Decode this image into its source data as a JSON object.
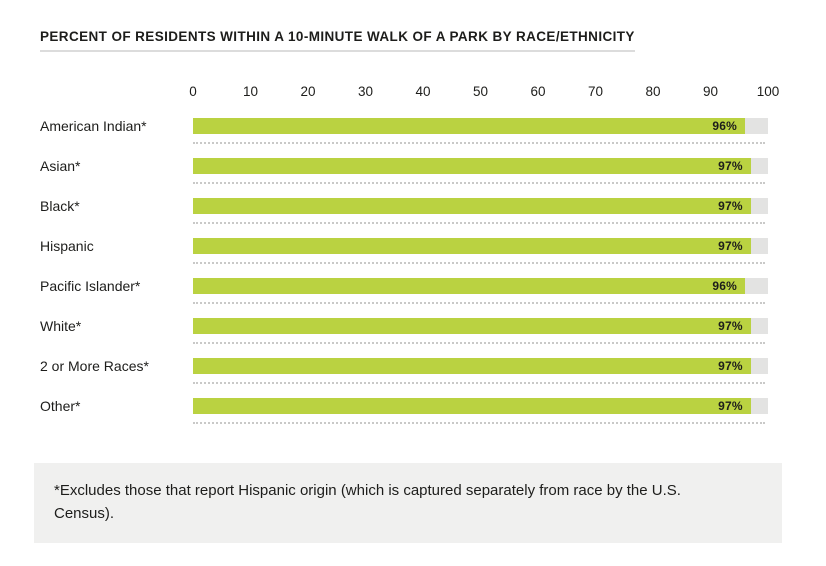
{
  "title": "PERCENT OF RESIDENTS WITHIN A 10-MINUTE WALK OF A PARK BY RACE/ETHNICITY",
  "colors": {
    "bar": "#bad241",
    "track": "#e3e3e2",
    "separator": "#c9c9c8",
    "footnote_bg": "#f0f0ef",
    "text": "#1d1d1b",
    "title_underline": "#dcdcdc"
  },
  "chart_data": {
    "type": "bar",
    "orientation": "horizontal",
    "title": "PERCENT OF RESIDENTS WITHIN A 10-MINUTE WALK OF A PARK BY RACE/ETHNICITY",
    "categories": [
      "American Indian*",
      "Asian*",
      "Black*",
      "Hispanic",
      "Pacific Islander*",
      "White*",
      "2 or More Races*",
      "Other*"
    ],
    "values": [
      96,
      97,
      97,
      97,
      96,
      97,
      97,
      97
    ],
    "value_labels": [
      "96%",
      "97%",
      "97%",
      "97%",
      "96%",
      "97%",
      "97%",
      "97%"
    ],
    "xlabel": "",
    "ylabel": "",
    "xlim": [
      0,
      100
    ],
    "x_ticks": [
      0,
      10,
      20,
      30,
      40,
      50,
      60,
      70,
      80,
      90,
      100
    ],
    "grid": false,
    "legend": false,
    "bar_full_track": true
  },
  "footnote": "*Excludes those that report Hispanic origin (which is captured separately from race by the U.S. Census)."
}
